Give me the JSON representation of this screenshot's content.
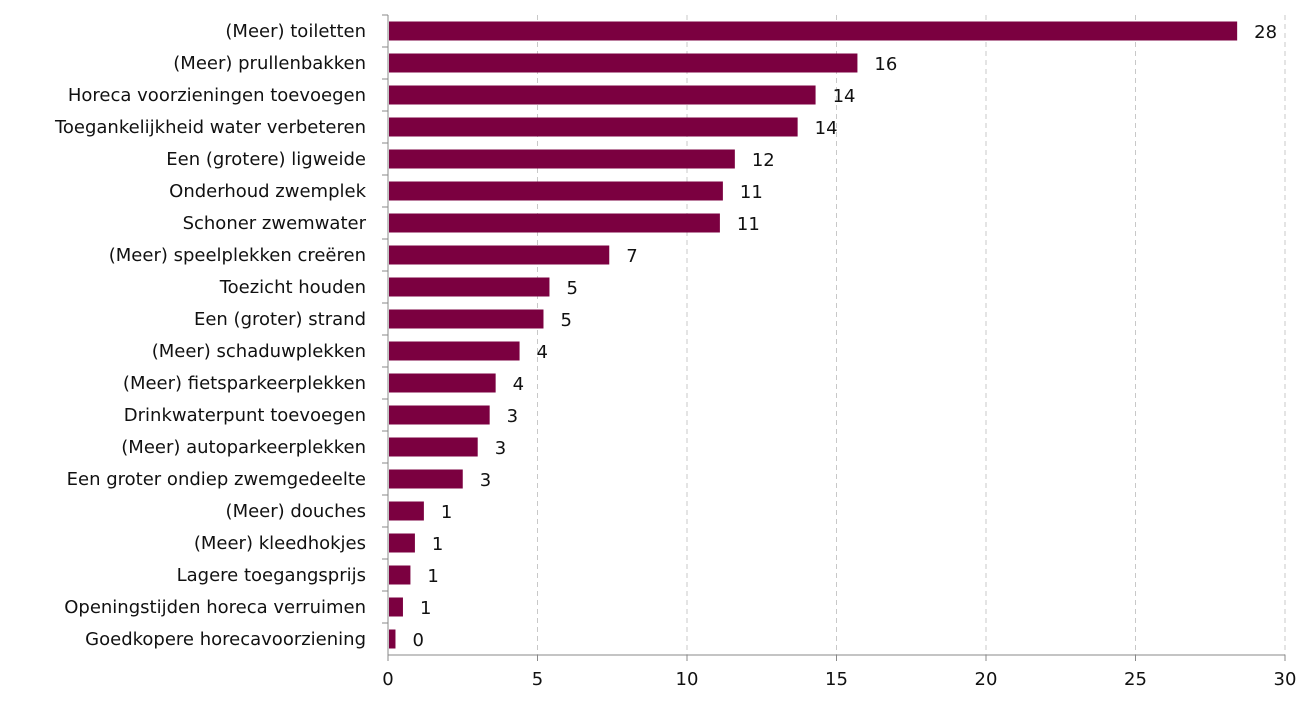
{
  "chart_data": {
    "type": "bar",
    "orientation": "horizontal",
    "title": "",
    "xlabel": "",
    "ylabel": "",
    "xlim": [
      0,
      30
    ],
    "xticks": [
      0,
      5,
      10,
      15,
      20,
      25,
      30
    ],
    "grid": "vertical-dashed",
    "bar_color": "#7b0040",
    "categories": [
      "(Meer) toiletten",
      "(Meer) prullenbakken",
      "Horeca voorzieningen toevoegen",
      "Toegankelijkheid water verbeteren",
      "Een (grotere) ligweide",
      "Onderhoud zwemplek",
      "Schoner zwemwater",
      "(Meer) speelplekken creëren",
      "Toezicht houden",
      "Een (groter) strand",
      "(Meer) schaduwplekken",
      "(Meer) fietsparkeerplekken",
      "Drinkwaterpunt toevoegen",
      "(Meer) autoparkeerplekken",
      "Een groter ondiep zwemgedeelte",
      "(Meer) douches",
      "(Meer) kleedhokjes",
      "Lagere toegangsprijs",
      "Openingstijden horeca verruimen",
      "Goedkopere horecavoorziening"
    ],
    "values": [
      28.4,
      15.7,
      14.3,
      13.7,
      11.6,
      11.2,
      11.1,
      7.4,
      5.4,
      5.2,
      4.4,
      3.6,
      3.4,
      3.0,
      2.5,
      1.2,
      0.9,
      0.75,
      0.5,
      0.25
    ],
    "data_labels": [
      "28",
      "16",
      "14",
      "14",
      "12",
      "11",
      "11",
      "7",
      "5",
      "5",
      "4",
      "4",
      "3",
      "3",
      "3",
      "1",
      "1",
      "1",
      "1",
      "0"
    ]
  }
}
